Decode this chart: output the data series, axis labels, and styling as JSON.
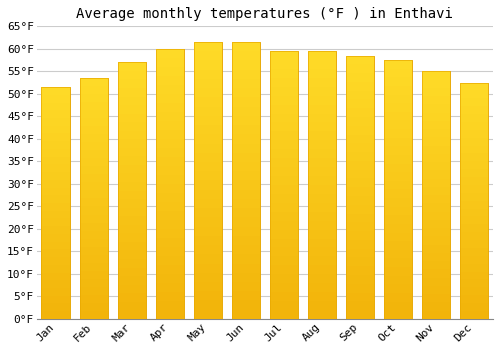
{
  "title": "Average monthly temperatures (°F ) in Enthavi",
  "months": [
    "Jan",
    "Feb",
    "Mar",
    "Apr",
    "May",
    "Jun",
    "Jul",
    "Aug",
    "Sep",
    "Oct",
    "Nov",
    "Dec"
  ],
  "values": [
    51.5,
    53.5,
    57.0,
    60.0,
    61.5,
    61.5,
    59.5,
    59.5,
    58.5,
    57.5,
    55.0,
    52.5
  ],
  "bar_color": "#FFC133",
  "bar_edge_color": "#E8A800",
  "ylim": [
    0,
    65
  ],
  "ytick_step": 5,
  "background_color": "#FFFFFF",
  "grid_color": "#CCCCCC",
  "title_fontsize": 10,
  "tick_fontsize": 8
}
